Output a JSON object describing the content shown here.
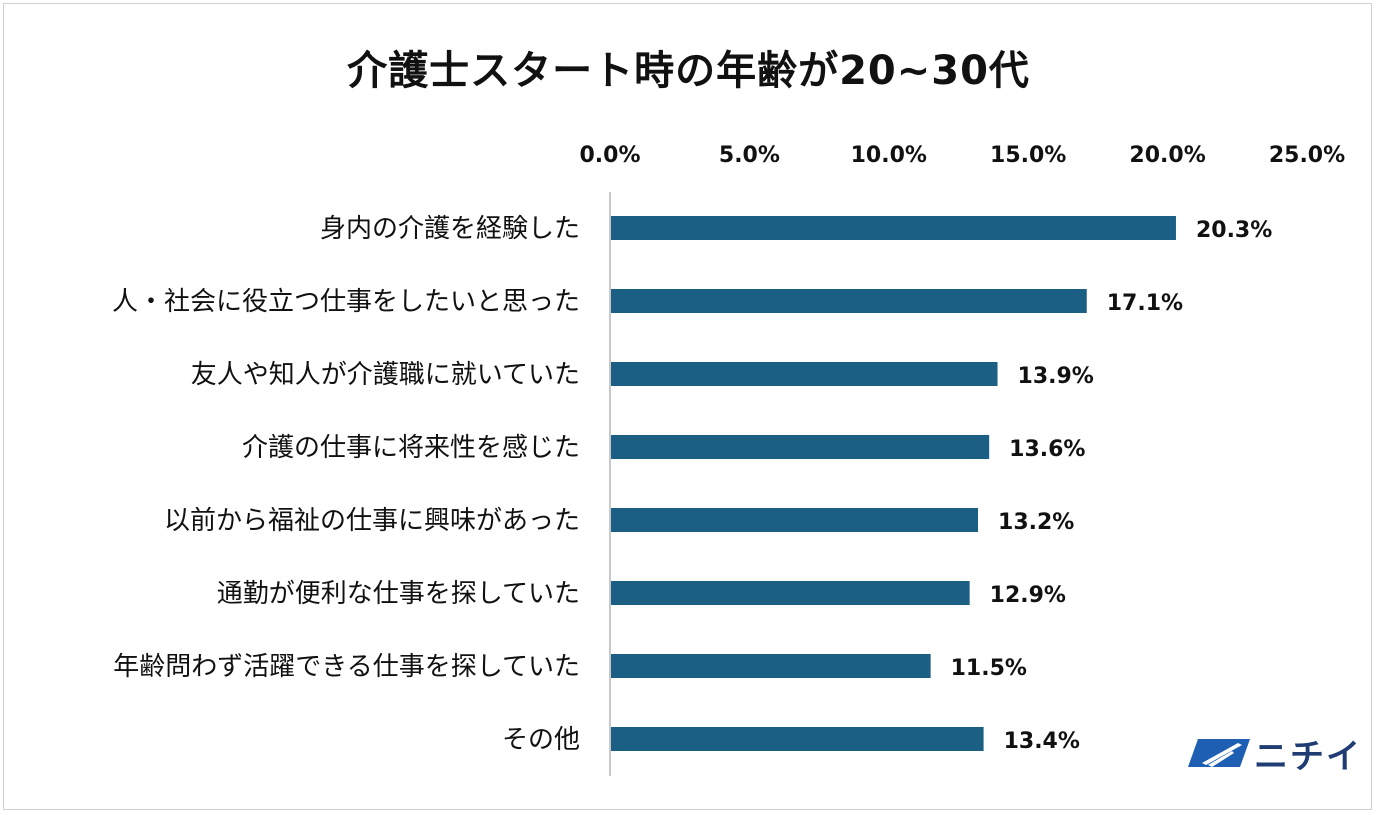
{
  "colors": {
    "bar": "#1b5f84",
    "axis": "#c8c8c8",
    "logo": "#1e5fb3"
  },
  "logo": {
    "text": "ニチイ",
    "icon": "nichii-logo-icon"
  },
  "chart_data": {
    "type": "bar",
    "orientation": "horizontal",
    "title": "介護士スタート時の年齢が20~30代",
    "xlabel": "",
    "ylabel": "",
    "xlim": [
      0,
      25
    ],
    "x_ticks": [
      0,
      5,
      10,
      15,
      20,
      25
    ],
    "x_tick_labels": [
      "0.0%",
      "5.0%",
      "10.0%",
      "15.0%",
      "20.0%",
      "25.0%"
    ],
    "x_axis_position": "top",
    "grid": false,
    "categories": [
      "身内の介護を経験した",
      "人・社会に役立つ仕事をしたいと思った",
      "友人や知人が介護職に就いていた",
      "介護の仕事に将来性を感じた",
      "以前から福祉の仕事に興味があった",
      "通勤が便利な仕事を探していた",
      "年齢問わず活躍できる仕事を探していた",
      "その他"
    ],
    "values": [
      20.3,
      17.1,
      13.9,
      13.6,
      13.2,
      12.9,
      11.5,
      13.4
    ],
    "data_labels": [
      "20.3%",
      "17.1%",
      "13.9%",
      "13.6%",
      "13.2%",
      "12.9%",
      "11.5%",
      "13.4%"
    ]
  }
}
